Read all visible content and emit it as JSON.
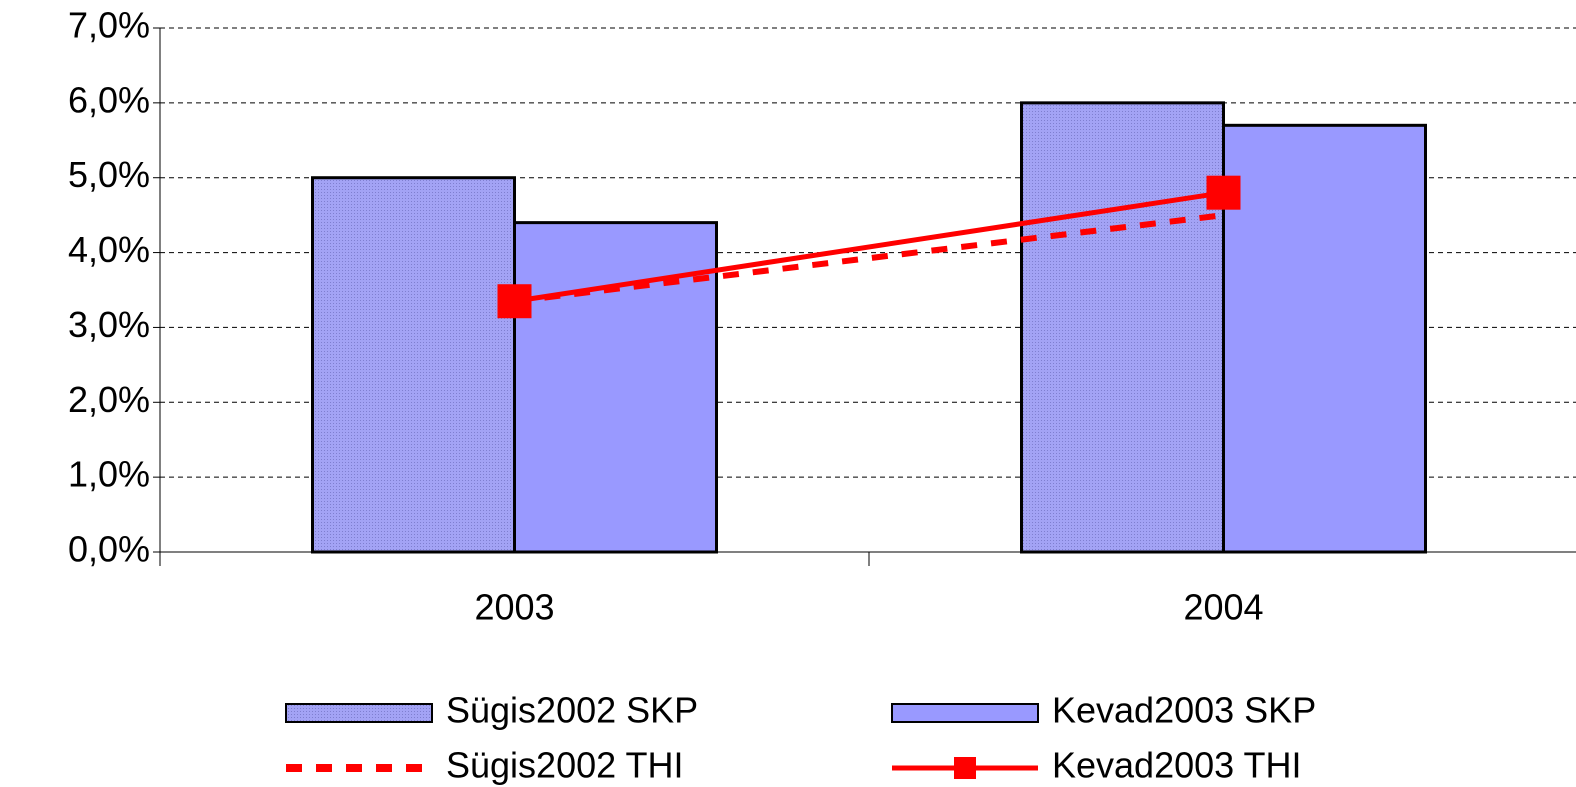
{
  "chart_data": {
    "type": "bar",
    "categories": [
      "2003",
      "2004"
    ],
    "series": [
      {
        "name": "Sügis2002 SKP",
        "type": "bar",
        "color": "#a3a3f5",
        "values": [
          5.0,
          6.0
        ]
      },
      {
        "name": "Kevad2003 SKP",
        "type": "bar",
        "color": "#9999ff",
        "values": [
          4.4,
          5.7
        ]
      },
      {
        "name": "Sügis2002 THI",
        "type": "line",
        "color": "#ff0000",
        "dashed": true,
        "values": [
          3.35,
          4.5
        ]
      },
      {
        "name": "Kevad2003 THI",
        "type": "line",
        "color": "#ff0000",
        "marker": "square",
        "values": [
          3.35,
          4.8
        ]
      }
    ],
    "ylim": [
      0,
      7
    ],
    "yticks": [
      {
        "value": 0,
        "label": "0,0%"
      },
      {
        "value": 1,
        "label": "1,0%"
      },
      {
        "value": 2,
        "label": "2,0%"
      },
      {
        "value": 3,
        "label": "3,0%"
      },
      {
        "value": 4,
        "label": "4,0%"
      },
      {
        "value": 5,
        "label": "5,0%"
      },
      {
        "value": 6,
        "label": "6,0%"
      },
      {
        "value": 7,
        "label": "7,0%"
      }
    ],
    "grid": true,
    "legend": "bottom"
  }
}
